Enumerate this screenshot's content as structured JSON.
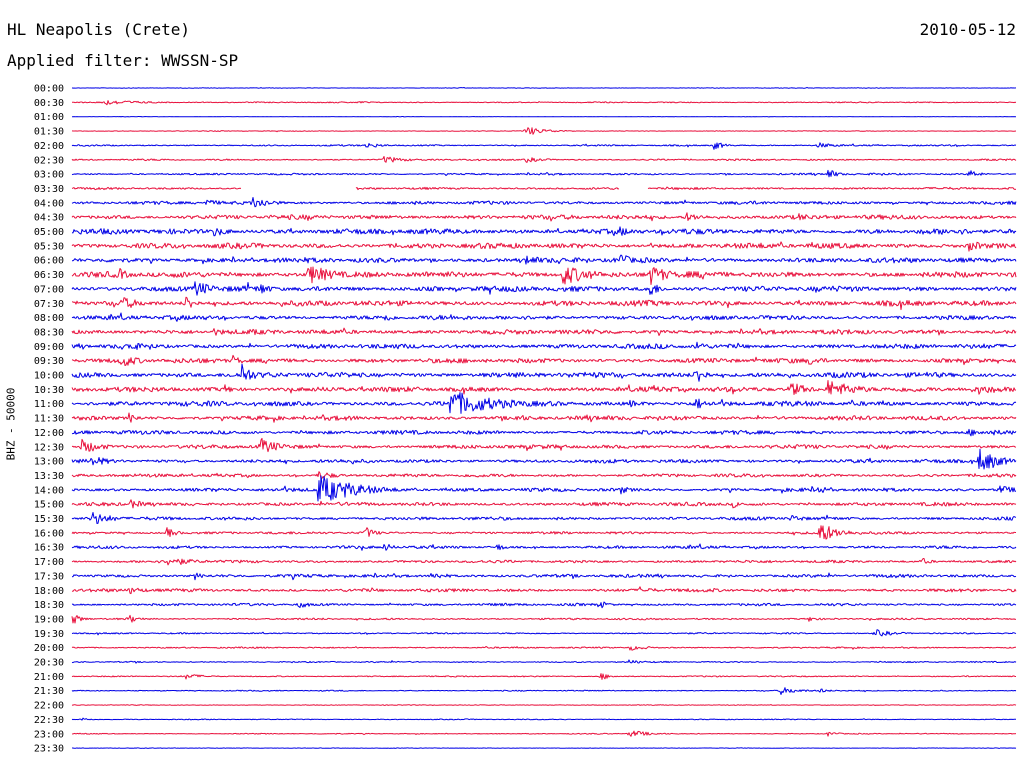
{
  "header": {
    "station": "HL Neapolis (Crete)",
    "date": "2010-05-12",
    "filter": "Applied filter: WWSSN-SP",
    "channel": "BHZ - 50000"
  },
  "colors": {
    "even": "#0000e6",
    "odd": "#e8103c",
    "text": "#000000"
  },
  "chart_data": {
    "type": "line",
    "title": "HL Neapolis (Crete)",
    "subtitle": "Applied filter: WWSSN-SP",
    "date": "2010-05-12",
    "ylabel": "BHZ - 50000",
    "rows": [
      {
        "label": "00:00",
        "noise": 0.3,
        "events": []
      },
      {
        "label": "00:30",
        "noise": 0.6,
        "events": [
          {
            "x": 0.03,
            "a": 3,
            "w": 0.04
          },
          {
            "x": 0.3,
            "a": 1.5,
            "w": 0.02
          }
        ]
      },
      {
        "label": "01:00",
        "noise": 0.2,
        "events": []
      },
      {
        "label": "01:30",
        "noise": 0.4,
        "events": [
          {
            "x": 0.48,
            "a": 5,
            "w": 0.02
          }
        ]
      },
      {
        "label": "02:00",
        "noise": 0.8,
        "events": [
          {
            "x": 0.31,
            "a": 3,
            "w": 0.02
          },
          {
            "x": 0.68,
            "a": 5,
            "w": 0.01
          },
          {
            "x": 0.79,
            "a": 3,
            "w": 0.02
          }
        ]
      },
      {
        "label": "02:30",
        "noise": 0.9,
        "events": [
          {
            "x": 0.33,
            "a": 4,
            "w": 0.02
          },
          {
            "x": 0.48,
            "a": 3,
            "w": 0.02
          }
        ]
      },
      {
        "label": "03:00",
        "noise": 1.0,
        "events": [
          {
            "x": 0.8,
            "a": 6,
            "w": 0.01
          },
          {
            "x": 0.95,
            "a": 5,
            "w": 0.01
          }
        ]
      },
      {
        "label": "03:30",
        "noise": 1.2,
        "events": [],
        "gaps": [
          [
            0.18,
            0.3
          ],
          [
            0.58,
            0.61
          ]
        ]
      },
      {
        "label": "04:00",
        "noise": 1.8,
        "events": [
          {
            "x": 0.14,
            "a": 4,
            "w": 0.02
          },
          {
            "x": 0.19,
            "a": 7,
            "w": 0.02
          }
        ]
      },
      {
        "label": "04:30",
        "noise": 2.5,
        "events": [
          {
            "x": 0.65,
            "a": 5,
            "w": 0.02
          },
          {
            "x": 0.77,
            "a": 4,
            "w": 0.02
          }
        ]
      },
      {
        "label": "05:00",
        "noise": 3.0,
        "events": [
          {
            "x": 0.15,
            "a": 5,
            "w": 0.02
          },
          {
            "x": 0.58,
            "a": 5,
            "w": 0.02
          }
        ]
      },
      {
        "label": "05:30",
        "noise": 3.0,
        "events": [
          {
            "x": 0.95,
            "a": 6,
            "w": 0.02
          }
        ]
      },
      {
        "label": "06:00",
        "noise": 2.8,
        "events": [
          {
            "x": 0.58,
            "a": 9,
            "w": 0.01
          },
          {
            "x": 0.48,
            "a": 6,
            "w": 0.02
          }
        ]
      },
      {
        "label": "06:30",
        "noise": 3.2,
        "events": [
          {
            "x": 0.05,
            "a": 7,
            "w": 0.01
          },
          {
            "x": 0.25,
            "a": 10,
            "w": 0.03
          },
          {
            "x": 0.52,
            "a": 11,
            "w": 0.03
          },
          {
            "x": 0.61,
            "a": 12,
            "w": 0.02
          }
        ]
      },
      {
        "label": "07:00",
        "noise": 3.0,
        "events": [
          {
            "x": 0.13,
            "a": 9,
            "w": 0.02
          },
          {
            "x": 0.2,
            "a": 7,
            "w": 0.01
          },
          {
            "x": 0.61,
            "a": 11,
            "w": 0.01
          }
        ]
      },
      {
        "label": "07:30",
        "noise": 3.0,
        "events": [
          {
            "x": 0.05,
            "a": 8,
            "w": 0.02
          },
          {
            "x": 0.12,
            "a": 9,
            "w": 0.01
          }
        ]
      },
      {
        "label": "08:00",
        "noise": 2.5,
        "events": [
          {
            "x": 0.33,
            "a": 6,
            "w": 0.01
          },
          {
            "x": 0.4,
            "a": 4,
            "w": 0.01
          }
        ]
      },
      {
        "label": "08:30",
        "noise": 2.6,
        "events": [
          {
            "x": 0.15,
            "a": 4,
            "w": 0.02
          }
        ]
      },
      {
        "label": "09:00",
        "noise": 2.6,
        "events": [
          {
            "x": 0.06,
            "a": 8,
            "w": 0.01
          },
          {
            "x": 0.66,
            "a": 8,
            "w": 0.01
          }
        ]
      },
      {
        "label": "09:30",
        "noise": 2.6,
        "events": [
          {
            "x": 0.05,
            "a": 8,
            "w": 0.02
          },
          {
            "x": 0.17,
            "a": 6,
            "w": 0.01
          },
          {
            "x": 0.78,
            "a": 5,
            "w": 0.02
          }
        ]
      },
      {
        "label": "10:00",
        "noise": 3.0,
        "events": [
          {
            "x": 0.18,
            "a": 14,
            "w": 0.01
          },
          {
            "x": 0.66,
            "a": 12,
            "w": 0.01
          },
          {
            "x": 0.9,
            "a": 5,
            "w": 0.01
          }
        ]
      },
      {
        "label": "10:30",
        "noise": 2.8,
        "events": [
          {
            "x": 0.16,
            "a": 6,
            "w": 0.01
          },
          {
            "x": 0.76,
            "a": 8,
            "w": 0.02
          },
          {
            "x": 0.8,
            "a": 10,
            "w": 0.03
          },
          {
            "x": 0.96,
            "a": 6,
            "w": 0.02
          }
        ]
      },
      {
        "label": "11:00",
        "noise": 2.8,
        "events": [
          {
            "x": 0.4,
            "a": 14,
            "w": 0.05
          },
          {
            "x": 0.66,
            "a": 8,
            "w": 0.01
          },
          {
            "x": 0.59,
            "a": 4,
            "w": 0.02
          }
        ]
      },
      {
        "label": "11:30",
        "noise": 2.4,
        "events": [
          {
            "x": 0.06,
            "a": 6,
            "w": 0.01
          },
          {
            "x": 0.47,
            "a": 4,
            "w": 0.02
          }
        ]
      },
      {
        "label": "12:00",
        "noise": 2.2,
        "events": [
          {
            "x": 0.95,
            "a": 4,
            "w": 0.02
          }
        ]
      },
      {
        "label": "12:30",
        "noise": 2.2,
        "events": [
          {
            "x": 0.01,
            "a": 8,
            "w": 0.02
          },
          {
            "x": 0.2,
            "a": 9,
            "w": 0.02
          }
        ]
      },
      {
        "label": "13:00",
        "noise": 2.0,
        "events": [
          {
            "x": 0.02,
            "a": 6,
            "w": 0.02
          },
          {
            "x": 0.96,
            "a": 14,
            "w": 0.02
          }
        ]
      },
      {
        "label": "13:30",
        "noise": 1.8,
        "events": [
          {
            "x": 0.26,
            "a": 5,
            "w": 0.02
          }
        ]
      },
      {
        "label": "14:00",
        "noise": 2.0,
        "events": [
          {
            "x": 0.26,
            "a": 16,
            "w": 0.04
          },
          {
            "x": 0.58,
            "a": 5,
            "w": 0.01
          },
          {
            "x": 0.79,
            "a": 5,
            "w": 0.01
          },
          {
            "x": 0.98,
            "a": 5,
            "w": 0.02
          }
        ]
      },
      {
        "label": "15:00",
        "noise": 2.0,
        "events": [
          {
            "x": 0.06,
            "a": 5,
            "w": 0.02
          },
          {
            "x": 0.7,
            "a": 4,
            "w": 0.01
          }
        ]
      },
      {
        "label": "15:30",
        "noise": 1.8,
        "events": [
          {
            "x": 0.02,
            "a": 8,
            "w": 0.02
          },
          {
            "x": 0.76,
            "a": 4,
            "w": 0.02
          }
        ]
      },
      {
        "label": "16:00",
        "noise": 1.4,
        "events": [
          {
            "x": 0.1,
            "a": 6,
            "w": 0.01
          },
          {
            "x": 0.31,
            "a": 7,
            "w": 0.01
          },
          {
            "x": 0.79,
            "a": 12,
            "w": 0.02
          }
        ]
      },
      {
        "label": "16:30",
        "noise": 1.6,
        "events": [
          {
            "x": 0.33,
            "a": 5,
            "w": 0.01
          },
          {
            "x": 0.45,
            "a": 4,
            "w": 0.01
          }
        ]
      },
      {
        "label": "17:00",
        "noise": 1.5,
        "events": [
          {
            "x": 0.1,
            "a": 5,
            "w": 0.03
          },
          {
            "x": 0.9,
            "a": 4,
            "w": 0.01
          }
        ]
      },
      {
        "label": "17:30",
        "noise": 1.8,
        "events": [
          {
            "x": 0.13,
            "a": 4,
            "w": 0.01
          },
          {
            "x": 0.38,
            "a": 4,
            "w": 0.02
          }
        ]
      },
      {
        "label": "18:00",
        "noise": 1.8,
        "events": [
          {
            "x": 0.06,
            "a": 4,
            "w": 0.02
          },
          {
            "x": 0.6,
            "a": 4,
            "w": 0.02
          }
        ]
      },
      {
        "label": "18:30",
        "noise": 1.4,
        "events": [
          {
            "x": 0.24,
            "a": 5,
            "w": 0.01
          },
          {
            "x": 0.56,
            "a": 4,
            "w": 0.01
          }
        ]
      },
      {
        "label": "19:00",
        "noise": 1.0,
        "events": [
          {
            "x": 0.0,
            "a": 6,
            "w": 0.01
          },
          {
            "x": 0.06,
            "a": 5,
            "w": 0.01
          },
          {
            "x": 0.78,
            "a": 3,
            "w": 0.01
          }
        ]
      },
      {
        "label": "19:30",
        "noise": 0.8,
        "events": [
          {
            "x": 0.85,
            "a": 4,
            "w": 0.02
          }
        ]
      },
      {
        "label": "20:00",
        "noise": 0.8,
        "events": [
          {
            "x": 0.59,
            "a": 3,
            "w": 0.02
          }
        ]
      },
      {
        "label": "20:30",
        "noise": 0.7,
        "events": [
          {
            "x": 0.59,
            "a": 3,
            "w": 0.01
          }
        ]
      },
      {
        "label": "21:00",
        "noise": 0.7,
        "events": [
          {
            "x": 0.12,
            "a": 3,
            "w": 0.02
          },
          {
            "x": 0.56,
            "a": 4,
            "w": 0.01
          }
        ]
      },
      {
        "label": "21:30",
        "noise": 0.6,
        "events": [
          {
            "x": 0.75,
            "a": 4,
            "w": 0.02
          },
          {
            "x": 0.79,
            "a": 3,
            "w": 0.01
          }
        ]
      },
      {
        "label": "22:00",
        "noise": 0.4,
        "events": []
      },
      {
        "label": "22:30",
        "noise": 0.5,
        "events": [
          {
            "x": 0.01,
            "a": 2,
            "w": 0.01
          }
        ]
      },
      {
        "label": "23:00",
        "noise": 0.5,
        "events": [
          {
            "x": 0.59,
            "a": 4,
            "w": 0.02
          },
          {
            "x": 0.8,
            "a": 3,
            "w": 0.01
          }
        ]
      },
      {
        "label": "23:30",
        "noise": 0.3,
        "events": []
      }
    ]
  }
}
